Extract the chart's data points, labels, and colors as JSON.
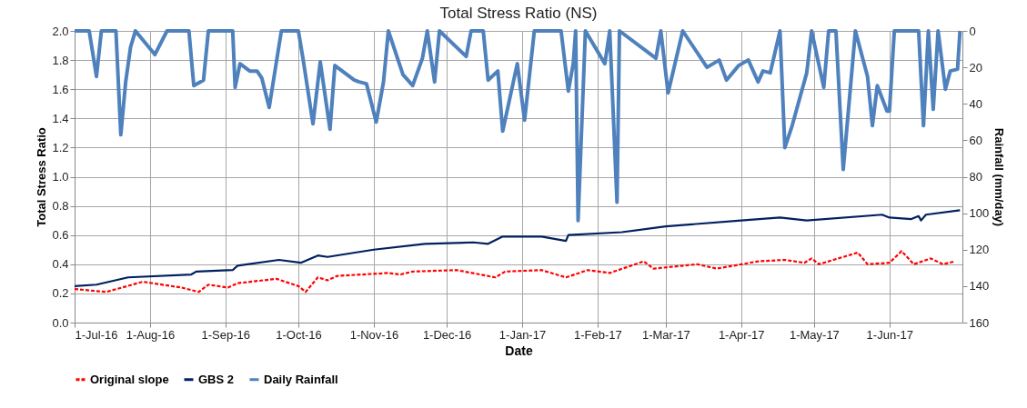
{
  "chart_data": {
    "type": "line",
    "title": "Total Stress Ratio (NS)",
    "xlabel": "Date",
    "ylabel": "Total Stress Ratio",
    "y2label": "Rainfall (mm/day)",
    "xlim": [
      "2016-07-01",
      "2017-07-01"
    ],
    "xticks": [
      {
        "value": "2016-07-01",
        "label": "1-Jul-16"
      },
      {
        "value": "2016-08-01",
        "label": "1-Aug-16"
      },
      {
        "value": "2016-09-01",
        "label": "1-Sep-16"
      },
      {
        "value": "2016-10-01",
        "label": "1-Oct-16"
      },
      {
        "value": "2016-11-01",
        "label": "1-Nov-16"
      },
      {
        "value": "2016-12-01",
        "label": "1-Dec-16"
      },
      {
        "value": "2017-01-01",
        "label": "1-Jan-17"
      },
      {
        "value": "2017-02-01",
        "label": "1-Feb-17"
      },
      {
        "value": "2017-03-01",
        "label": "1-Mar-17"
      },
      {
        "value": "2017-04-01",
        "label": "1-Apr-17"
      },
      {
        "value": "2017-05-01",
        "label": "1-May-17"
      },
      {
        "value": "2017-06-01",
        "label": "1-Jun-17"
      }
    ],
    "ylim": [
      0,
      2
    ],
    "yticks": [
      {
        "value": 0,
        "label": "0.0"
      },
      {
        "value": 0.2,
        "label": "0.2"
      },
      {
        "value": 0.4,
        "label": "0.4"
      },
      {
        "value": 0.6,
        "label": "0.6"
      },
      {
        "value": 0.8,
        "label": "0.8"
      },
      {
        "value": 1,
        "label": "1.0"
      },
      {
        "value": 1.2,
        "label": "1.2"
      },
      {
        "value": 1.4,
        "label": "1.4"
      },
      {
        "value": 1.6,
        "label": "1.6"
      },
      {
        "value": 1.8,
        "label": "1.8"
      },
      {
        "value": 2,
        "label": "2.0"
      }
    ],
    "y2lim": [
      160,
      0
    ],
    "y2ticks": [
      0,
      20,
      40,
      60,
      80,
      100,
      120,
      140,
      160
    ],
    "grid": true,
    "legend": "bottom",
    "marker": "none",
    "series": [
      {
        "name": "Original slope",
        "color": "#ff0000",
        "line_style": "dashed",
        "x": [
          "2016-07-01",
          "2016-07-14",
          "2016-07-29",
          "2016-08-14",
          "2016-08-21",
          "2016-08-25",
          "2016-09-02",
          "2016-09-06",
          "2016-09-22",
          "2016-10-01",
          "2016-10-04",
          "2016-10-09",
          "2016-10-13",
          "2016-10-17",
          "2016-11-07",
          "2016-11-12",
          "2016-11-17",
          "2016-12-05",
          "2016-12-21",
          "2016-12-25",
          "2017-01-09",
          "2017-01-19",
          "2017-01-28",
          "2017-02-06",
          "2017-02-20",
          "2017-02-24",
          "2017-03-14",
          "2017-03-22",
          "2017-04-08",
          "2017-04-19",
          "2017-04-27",
          "2017-04-30",
          "2017-05-03",
          "2017-05-19",
          "2017-05-23",
          "2017-06-01",
          "2017-06-06",
          "2017-06-11",
          "2017-06-18",
          "2017-06-23",
          "2017-06-28"
        ],
        "values": [
          0.23,
          0.21,
          0.28,
          0.24,
          0.21,
          0.26,
          0.24,
          0.27,
          0.3,
          0.25,
          0.21,
          0.31,
          0.29,
          0.32,
          0.34,
          0.33,
          0.35,
          0.36,
          0.31,
          0.35,
          0.36,
          0.31,
          0.36,
          0.34,
          0.42,
          0.37,
          0.4,
          0.37,
          0.42,
          0.43,
          0.41,
          0.44,
          0.4,
          0.48,
          0.4,
          0.41,
          0.49,
          0.4,
          0.44,
          0.4,
          0.42
        ]
      },
      {
        "name": "GBS 2",
        "color": "#002060",
        "line_style": "solid",
        "x": [
          "2016-07-01",
          "2016-07-10",
          "2016-07-23",
          "2016-08-18",
          "2016-08-20",
          "2016-09-04",
          "2016-09-06",
          "2016-09-23",
          "2016-10-02",
          "2016-10-09",
          "2016-10-13",
          "2016-11-01",
          "2016-11-22",
          "2016-12-12",
          "2016-12-18",
          "2016-12-24",
          "2017-01-09",
          "2017-01-19",
          "2017-01-20",
          "2017-02-11",
          "2017-03-01",
          "2017-04-01",
          "2017-04-17",
          "2017-04-28",
          "2017-05-29",
          "2017-06-01",
          "2017-06-10",
          "2017-06-13",
          "2017-06-14",
          "2017-06-16",
          "2017-06-30"
        ],
        "values": [
          0.25,
          0.26,
          0.31,
          0.33,
          0.35,
          0.36,
          0.39,
          0.43,
          0.41,
          0.46,
          0.45,
          0.5,
          0.54,
          0.55,
          0.54,
          0.59,
          0.59,
          0.56,
          0.6,
          0.62,
          0.66,
          0.7,
          0.72,
          0.7,
          0.74,
          0.72,
          0.71,
          0.73,
          0.7,
          0.74,
          0.77
        ]
      },
      {
        "name": "Daily Rainfall",
        "color": "#4f81bd",
        "line_style": "solid",
        "axis": "y2",
        "x": [
          "2016-07-01",
          "2016-07-07",
          "2016-07-10",
          "2016-07-12",
          "2016-07-18",
          "2016-07-20",
          "2016-07-22",
          "2016-07-24",
          "2016-07-26",
          "2016-08-03",
          "2016-08-08",
          "2016-08-17",
          "2016-08-19",
          "2016-08-23",
          "2016-08-25",
          "2016-09-04",
          "2016-09-05",
          "2016-09-07",
          "2016-09-11",
          "2016-09-14",
          "2016-09-16",
          "2016-09-19",
          "2016-09-24",
          "2016-10-01",
          "2016-10-03",
          "2016-10-07",
          "2016-10-10",
          "2016-10-14",
          "2016-10-16",
          "2016-10-24",
          "2016-10-26",
          "2016-10-29",
          "2016-11-02",
          "2016-11-05",
          "2016-11-07",
          "2016-11-13",
          "2016-11-17",
          "2016-11-21",
          "2016-11-23",
          "2016-11-26",
          "2016-11-28",
          "2016-12-09",
          "2016-12-11",
          "2016-12-16",
          "2016-12-18",
          "2016-12-22",
          "2016-12-24",
          "2016-12-30",
          "2017-01-02",
          "2017-01-06",
          "2017-01-17",
          "2017-01-20",
          "2017-01-22",
          "2017-01-23",
          "2017-01-24",
          "2017-01-27",
          "2017-02-04",
          "2017-02-06",
          "2017-02-09",
          "2017-02-10",
          "2017-02-25",
          "2017-02-27",
          "2017-03-02",
          "2017-03-08",
          "2017-03-18",
          "2017-03-23",
          "2017-03-26",
          "2017-03-31",
          "2017-04-04",
          "2017-04-08",
          "2017-04-10",
          "2017-04-13",
          "2017-04-17",
          "2017-04-19",
          "2017-04-22",
          "2017-04-28",
          "2017-04-30",
          "2017-05-05",
          "2017-05-07",
          "2017-05-10",
          "2017-05-13",
          "2017-05-18",
          "2017-05-23",
          "2017-05-25",
          "2017-05-27",
          "2017-05-31",
          "2017-06-01",
          "2017-06-03",
          "2017-06-13",
          "2017-06-15",
          "2017-06-17",
          "2017-06-19",
          "2017-06-21",
          "2017-06-24",
          "2017-06-26",
          "2017-06-29",
          "2017-06-30"
        ],
        "values": [
          0,
          0,
          25,
          0,
          0,
          57,
          28,
          9,
          0,
          13,
          0,
          0,
          30,
          27,
          0,
          0,
          31,
          18,
          22,
          22,
          26,
          42,
          0,
          0,
          16,
          51,
          17,
          54,
          19,
          27,
          28,
          29,
          50,
          28,
          0,
          24,
          30,
          15,
          0,
          28,
          0,
          14,
          0,
          0,
          27,
          22,
          55,
          18,
          49,
          0,
          0,
          33,
          18,
          0,
          104,
          0,
          18,
          0,
          94,
          0,
          15,
          0,
          34,
          0,
          20,
          16,
          27,
          19,
          16,
          28,
          22,
          23,
          0,
          64,
          52,
          23,
          0,
          31,
          0,
          0,
          76,
          0,
          25,
          52,
          30,
          44,
          44,
          0,
          0,
          52,
          0,
          43,
          0,
          32,
          22,
          21,
          0
        ]
      }
    ]
  }
}
